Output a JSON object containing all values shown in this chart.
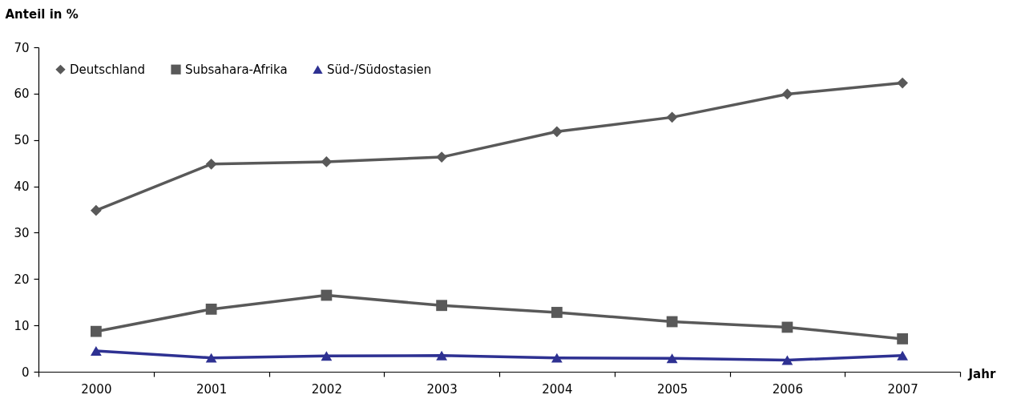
{
  "chart_data": {
    "type": "line",
    "ylabel": "Anteil in %",
    "xlabel": "Jahr",
    "categories": [
      "2000",
      "2001",
      "2002",
      "2003",
      "2004",
      "2005",
      "2006",
      "2007"
    ],
    "series": [
      {
        "name": "Deutschland",
        "color": "#595959",
        "marker": "diamond",
        "values": [
          34.8,
          44.8,
          45.3,
          46.3,
          51.8,
          54.9,
          59.9,
          62.3
        ]
      },
      {
        "name": "Subsahara-Afrika",
        "color": "#595959",
        "marker": "square",
        "values": [
          8.7,
          13.5,
          16.5,
          14.3,
          12.8,
          10.8,
          9.6,
          7.1
        ]
      },
      {
        "name": "Süd-/Südostasien",
        "color": "#2e3192",
        "marker": "triangle",
        "values": [
          4.5,
          3.0,
          3.4,
          3.5,
          3.0,
          2.9,
          2.5,
          3.5
        ]
      }
    ],
    "ylim": [
      0,
      70
    ],
    "yticks": [
      0,
      10,
      20,
      30,
      40,
      50,
      60,
      70
    ],
    "grid": false,
    "legend": "top left",
    "line_style": "solid"
  }
}
